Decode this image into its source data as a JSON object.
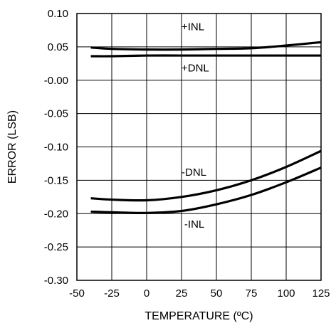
{
  "chart_data": {
    "type": "line",
    "xlabel": "TEMPERATURE (ºC)",
    "ylabel": "ERROR (LSB)",
    "xlim": [
      -50,
      125
    ],
    "ylim": [
      -0.3,
      0.1
    ],
    "xticks": [
      -50,
      -25,
      0,
      25,
      50,
      75,
      100,
      125
    ],
    "xtick_labels": [
      "-50",
      "-25",
      "0",
      "25",
      "50",
      "75",
      "100",
      "125"
    ],
    "yticks": [
      0.1,
      0.05,
      0.0,
      -0.05,
      -0.1,
      -0.15,
      -0.2,
      -0.25,
      -0.3
    ],
    "ytick_labels": [
      "0.10",
      "0.05",
      "-0.00",
      "-0.05",
      "-0.10",
      "-0.15",
      "-0.20",
      "-0.25",
      "-0.30"
    ],
    "grid": true,
    "legend": "none",
    "series": [
      {
        "name": "+INL",
        "x": [
          -40,
          -25,
          0,
          25,
          50,
          75,
          100,
          125
        ],
        "y": [
          0.049,
          0.047,
          0.046,
          0.046,
          0.047,
          0.048,
          0.052,
          0.057
        ]
      },
      {
        "name": "+DNL",
        "x": [
          -40,
          -25,
          0,
          25,
          50,
          75,
          100,
          125
        ],
        "y": [
          0.036,
          0.036,
          0.037,
          0.037,
          0.037,
          0.037,
          0.037,
          0.037
        ]
      },
      {
        "name": "-DNL",
        "x": [
          -40,
          -25,
          0,
          25,
          50,
          75,
          100,
          125
        ],
        "y": [
          -0.177,
          -0.179,
          -0.18,
          -0.175,
          -0.165,
          -0.15,
          -0.13,
          -0.106
        ]
      },
      {
        "name": "-INL",
        "x": [
          -40,
          -25,
          0,
          25,
          50,
          75,
          100,
          125
        ],
        "y": [
          -0.197,
          -0.198,
          -0.199,
          -0.196,
          -0.186,
          -0.172,
          -0.153,
          -0.131
        ]
      }
    ],
    "annotations": [
      {
        "text": "+INL",
        "series": "+INL"
      },
      {
        "text": "+DNL",
        "series": "+DNL"
      },
      {
        "text": "-DNL",
        "series": "-DNL"
      },
      {
        "text": "-INL",
        "series": "-INL"
      }
    ]
  }
}
